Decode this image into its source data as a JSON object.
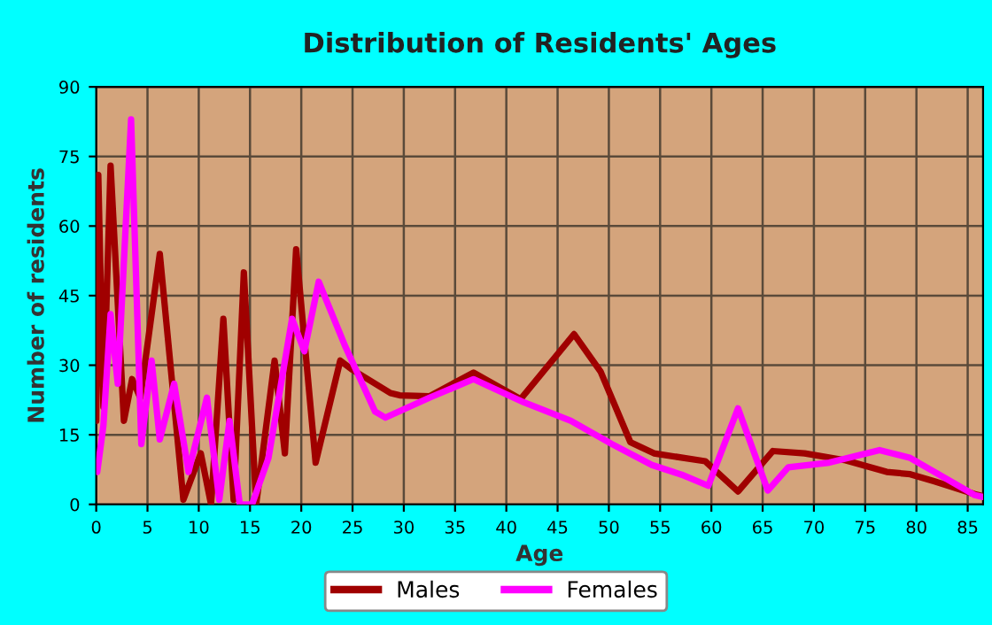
{
  "chart_data": {
    "type": "line",
    "title": "Distribution of Residents' Ages",
    "xlabel": "Age",
    "ylabel": "Number of residents",
    "xlim": [
      0,
      86.5
    ],
    "xticks": [
      0,
      5,
      10,
      15,
      20,
      25,
      30,
      35,
      40,
      45,
      50,
      55,
      60,
      65,
      70,
      75,
      80,
      85
    ],
    "ylim": [
      0,
      90
    ],
    "yticks": [
      0,
      15,
      30,
      45,
      60,
      75,
      90
    ],
    "grid": true,
    "legend": "bottom",
    "line_style": "solid",
    "marker": "none",
    "series": [
      {
        "name": "Males",
        "color": "#a00000",
        "x": [
          0,
          0.2,
          0.7,
          1.4,
          2.7,
          3.5,
          4.3,
          6.2,
          8.5,
          10.2,
          11.2,
          12.4,
          13.4,
          14.4,
          15.6,
          17.4,
          18.4,
          19.5,
          21.4,
          23.8,
          25,
          28.7,
          29.6,
          32.5,
          36.8,
          41.4,
          46.6,
          49.2,
          52.1,
          54.4,
          59.4,
          62.6,
          66,
          69.1,
          73.1,
          77.1,
          79.4,
          81.7,
          85.7,
          86.5
        ],
        "values": [
          18,
          71,
          21,
          73,
          18,
          27,
          23,
          54,
          1,
          11,
          0,
          40,
          1,
          50,
          0,
          31,
          11,
          55,
          9,
          31,
          29,
          24,
          23.5,
          23.3,
          28.4,
          22.7,
          36.7,
          28.6,
          13.4,
          11,
          9.3,
          2.8,
          11.5,
          11,
          9.5,
          7,
          6.5,
          5,
          2.2,
          1.8
        ]
      },
      {
        "name": "Females",
        "color": "#ff00ff",
        "x": [
          0.1,
          0.7,
          1.4,
          2.1,
          3.4,
          4.4,
          5.4,
          6.2,
          7.6,
          9.0,
          10.8,
          12.0,
          13.0,
          14.0,
          15.2,
          16.8,
          19.1,
          20.3,
          21.7,
          24.3,
          27.2,
          28.2,
          32.5,
          36.8,
          41.7,
          46.3,
          50.3,
          54.2,
          57.1,
          59.7,
          62.6,
          65.5,
          67.5,
          71.5,
          76.4,
          79.4,
          85.7,
          86.5
        ],
        "values": [
          7,
          17,
          41,
          26,
          83,
          13,
          31,
          14,
          26,
          7,
          23,
          1,
          18,
          0,
          0,
          10,
          40,
          33,
          48,
          34,
          20,
          18.7,
          23,
          27,
          22,
          18,
          13,
          8.5,
          6.4,
          4,
          20.7,
          3,
          8,
          9,
          11.7,
          10,
          2,
          1.6
        ]
      }
    ]
  }
}
